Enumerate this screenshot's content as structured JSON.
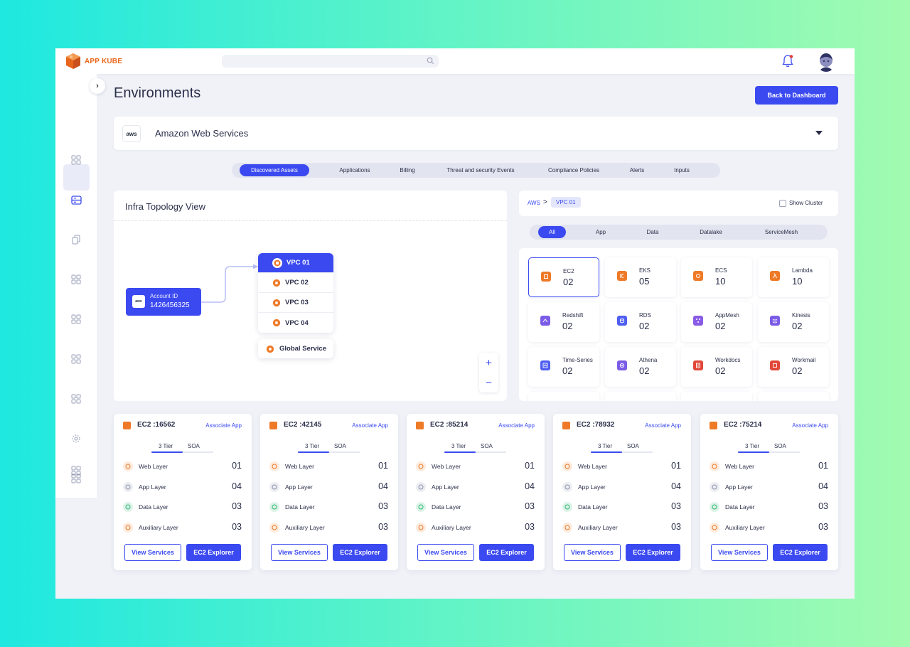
{
  "brand": {
    "name": "APP KUBE",
    "color": "#e8661b"
  },
  "accent": "#3b4af0",
  "header": {
    "search_placeholder": "",
    "notification_icon": "bell-icon",
    "avatar": "user-avatar"
  },
  "page": {
    "title": "Environments",
    "back_button": "Back to Dashboard"
  },
  "environment": {
    "logo": "aws",
    "name": "Amazon Web Services"
  },
  "tabs": [
    "Discovered Assets",
    "Applications",
    "Billing",
    "Threat and security Events",
    "Compliance Policies",
    "Alerts",
    "Inputs"
  ],
  "topology": {
    "title": "Infra Topology View",
    "account": {
      "label": "Account ID",
      "value": "1426456325"
    },
    "vpcs": [
      "VPC 01",
      "VPC 02",
      "VPC 03",
      "VPC 04"
    ],
    "global_service": "Global Service",
    "zoom_in": "+",
    "zoom_out": "−"
  },
  "breadcrumb": {
    "root": "AWS",
    "sep": ">",
    "current": "VPC 01",
    "show_cluster": "Show Cluster"
  },
  "categories": [
    "All",
    "App",
    "Data",
    "Datalake",
    "ServiceMesh"
  ],
  "services": [
    {
      "name": "EC2",
      "count": "02",
      "color": "#ee7a27"
    },
    {
      "name": "EKS",
      "count": "05",
      "color": "#ee7a27"
    },
    {
      "name": "ECS",
      "count": "10",
      "color": "#ee7a27"
    },
    {
      "name": "Lambda",
      "count": "10",
      "color": "#ee7a27"
    },
    {
      "name": "Redshift",
      "count": "02",
      "color": "#7b5ce6"
    },
    {
      "name": "RDS",
      "count": "02",
      "color": "#4e5ef0"
    },
    {
      "name": "AppMesh",
      "count": "02",
      "color": "#8a5ce6"
    },
    {
      "name": "Kinesis",
      "count": "02",
      "color": "#7b5ce6"
    },
    {
      "name": "Time-Series",
      "count": "02",
      "color": "#4e5ef0"
    },
    {
      "name": "Athena",
      "count": "02",
      "color": "#7b5ce6"
    },
    {
      "name": "Workdocs",
      "count": "02",
      "color": "#e1483a"
    },
    {
      "name": "Workmail",
      "count": "02",
      "color": "#e1483a"
    }
  ],
  "ec2_cards": [
    {
      "title": "EC2 :16562",
      "associate": "Associate App",
      "tiers": [
        "3 Tier",
        "SOA"
      ],
      "layers": [
        {
          "name": "Web Layer",
          "value": "01"
        },
        {
          "name": "App Layer",
          "value": "04"
        },
        {
          "name": "Data Layer",
          "value": "03"
        },
        {
          "name": "Auxiliary Layer",
          "value": "03"
        }
      ],
      "view": "View Services",
      "explore": "EC2 Explorer"
    },
    {
      "title": "EC2 :42145",
      "associate": "Associate App",
      "tiers": [
        "3 Tier",
        "SOA"
      ],
      "layers": [
        {
          "name": "Web Layer",
          "value": "01"
        },
        {
          "name": "App Layer",
          "value": "04"
        },
        {
          "name": "Data Layer",
          "value": "03"
        },
        {
          "name": "Auxiliary Layer",
          "value": "03"
        }
      ],
      "view": "View Services",
      "explore": "EC2 Explorer"
    },
    {
      "title": "EC2 :85214",
      "associate": "Associate App",
      "tiers": [
        "3 Tier",
        "SOA"
      ],
      "layers": [
        {
          "name": "Web Layer",
          "value": "01"
        },
        {
          "name": "App Layer",
          "value": "04"
        },
        {
          "name": "Data Layer",
          "value": "03"
        },
        {
          "name": "Auxiliary Layer",
          "value": "03"
        }
      ],
      "view": "View Services",
      "explore": "EC2 Explorer"
    },
    {
      "title": "EC2 :78932",
      "associate": "Associate App",
      "tiers": [
        "3 Tier",
        "SOA"
      ],
      "layers": [
        {
          "name": "Web Layer",
          "value": "01"
        },
        {
          "name": "App Layer",
          "value": "04"
        },
        {
          "name": "Data Layer",
          "value": "03"
        },
        {
          "name": "Auxiliary Layer",
          "value": "03"
        }
      ],
      "view": "View Services",
      "explore": "EC2 Explorer"
    },
    {
      "title": "EC2 :75214",
      "associate": "Associate App",
      "tiers": [
        "3 Tier",
        "SOA"
      ],
      "layers": [
        {
          "name": "Web Layer",
          "value": "01"
        },
        {
          "name": "App Layer",
          "value": "04"
        },
        {
          "name": "Data Layer",
          "value": "03"
        },
        {
          "name": "Auxiliary Layer",
          "value": "03"
        }
      ],
      "view": "View Services",
      "explore": "EC2 Explorer"
    }
  ]
}
